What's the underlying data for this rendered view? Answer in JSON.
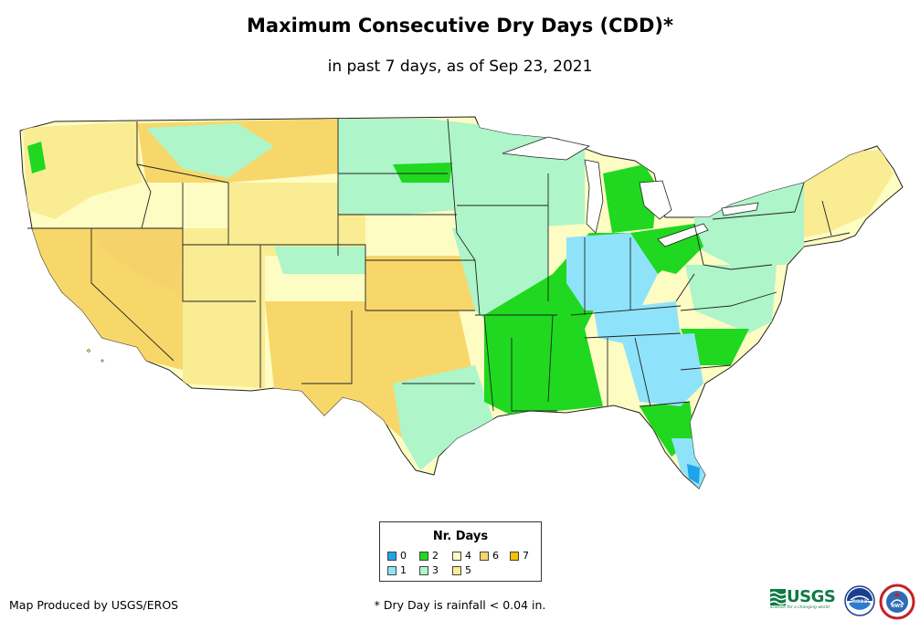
{
  "title": "Maximum Consecutive Dry Days (CDD)*",
  "subtitle": "in past 7 days, as of Sep 23, 2021",
  "legend": {
    "title": "Nr. Days",
    "items": [
      {
        "label": "0",
        "color": "#1fa3ea"
      },
      {
        "label": "1",
        "color": "#8ee3fa"
      },
      {
        "label": "2",
        "color": "#1fd81f"
      },
      {
        "label": "3",
        "color": "#aef5c9"
      },
      {
        "label": "4",
        "color": "#fdfcc3"
      },
      {
        "label": "5",
        "color": "#f9ec93"
      },
      {
        "label": "6",
        "color": "#f8d76a"
      },
      {
        "label": "7",
        "color": "#f6c100"
      }
    ]
  },
  "credit": "Map Produced by USGS/EROS",
  "footnote": "* Dry Day is rainfall < 0.04 in.",
  "logos": {
    "usgs": "USGS",
    "usgs_tagline": "science for a changing world",
    "noaa": "noaa",
    "nws": "NWS"
  }
}
